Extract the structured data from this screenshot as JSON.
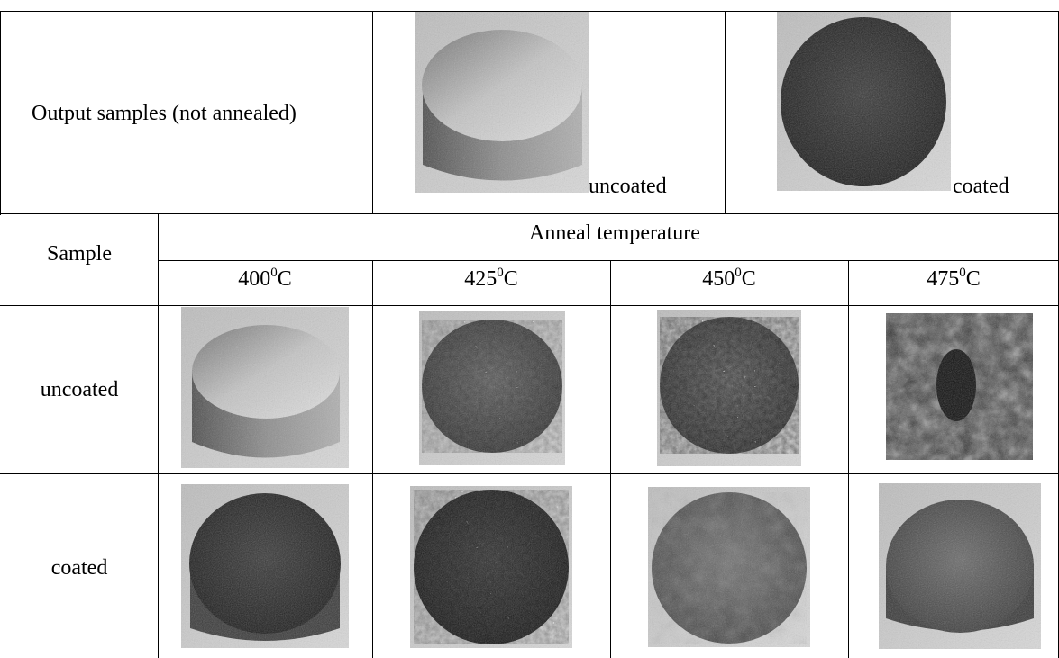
{
  "header_row": {
    "label": "Output samples (not annealed)",
    "uncoated_caption": "uncoated",
    "coated_caption": "coated"
  },
  "table_head": {
    "sample_label": "Sample",
    "group_label": "Anneal temperature",
    "temperatures": [
      {
        "value": "400",
        "sup": "0",
        "unit": "C"
      },
      {
        "value": "425",
        "sup": "0",
        "unit": "C"
      },
      {
        "value": "450",
        "sup": "0",
        "unit": "C"
      },
      {
        "value": "475",
        "sup": "0",
        "unit": "C"
      }
    ]
  },
  "rows": [
    {
      "label": "uncoated"
    },
    {
      "label": "coated"
    }
  ]
}
